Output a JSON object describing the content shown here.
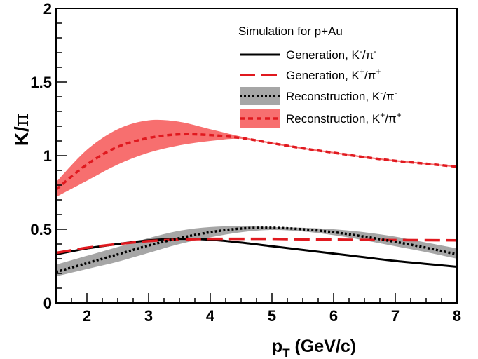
{
  "chart_data": {
    "type": "line",
    "title": "",
    "xlabel": {
      "main": "p",
      "sub": "T",
      "rest": " (GeV/c)"
    },
    "ylabel": {
      "main": "K/",
      "greek": "π"
    },
    "xlim": [
      1.5,
      8
    ],
    "ylim": [
      0,
      2
    ],
    "x_ticks": [
      2,
      3,
      4,
      5,
      6,
      7,
      8
    ],
    "y_ticks": [
      {
        "value": 0,
        "label": "0"
      },
      {
        "value": 0.5,
        "label": "0.5"
      },
      {
        "value": 1,
        "label": "1"
      },
      {
        "value": 1.5,
        "label": "1.5"
      },
      {
        "value": 2,
        "label": "2"
      }
    ],
    "grid": false,
    "legend_position": "top-right",
    "legend_header": "Simulation for p+Au",
    "series": [
      {
        "name": "Generation, K⁻/π⁻",
        "label": {
          "pre": "Generation, K",
          "sup1": "-",
          "mid": "/π",
          "sup2": "-"
        },
        "style": "solid",
        "color": "#000000",
        "x": [
          1.5,
          2,
          2.5,
          3,
          3.5,
          4,
          4.5,
          5,
          5.5,
          6,
          6.5,
          7,
          7.5,
          8
        ],
        "y": [
          0.33,
          0.37,
          0.4,
          0.425,
          0.435,
          0.43,
          0.41,
          0.385,
          0.36,
          0.335,
          0.31,
          0.285,
          0.265,
          0.245
        ]
      },
      {
        "name": "Generation, K⁺/π⁺",
        "label": {
          "pre": "Generation, K",
          "sup1": "+",
          "mid": "/π",
          "sup2": "+"
        },
        "style": "long-dash",
        "color": "#e0191f",
        "x": [
          1.5,
          2,
          2.5,
          3,
          3.5,
          4,
          4.5,
          5,
          5.5,
          6,
          6.5,
          7,
          7.5,
          8
        ],
        "y": [
          0.34,
          0.375,
          0.4,
          0.42,
          0.43,
          0.435,
          0.435,
          0.435,
          0.432,
          0.43,
          0.428,
          0.427,
          0.426,
          0.425
        ]
      },
      {
        "name": "Reconstruction, K⁻/π⁻",
        "label": {
          "pre": "Reconstruction, K",
          "sup1": "-",
          "mid": "/π",
          "sup2": "-"
        },
        "style": "dotted",
        "color": "#000000",
        "band_color": "#a6a6a6",
        "x": [
          1.5,
          2,
          2.5,
          3,
          3.5,
          4,
          4.5,
          5,
          5.5,
          6,
          6.5,
          7,
          7.5,
          8
        ],
        "y": [
          0.21,
          0.27,
          0.33,
          0.39,
          0.44,
          0.48,
          0.505,
          0.51,
          0.5,
          0.48,
          0.45,
          0.415,
          0.375,
          0.33
        ],
        "band_low": [
          0.18,
          0.23,
          0.28,
          0.34,
          0.4,
          0.445,
          0.48,
          0.495,
          0.485,
          0.46,
          0.425,
          0.385,
          0.345,
          0.3
        ],
        "band_high": [
          0.26,
          0.32,
          0.38,
          0.44,
          0.49,
          0.515,
          0.52,
          0.515,
          0.51,
          0.5,
          0.48,
          0.45,
          0.41,
          0.37
        ]
      },
      {
        "name": "Reconstruction, K⁺/π⁺",
        "label": {
          "pre": "Reconstruction, K",
          "sup1": "+",
          "mid": "/π",
          "sup2": "+"
        },
        "style": "short-dash",
        "color": "#e0191f",
        "band_color": "#f76f6f",
        "x": [
          1.5,
          2,
          2.5,
          3,
          3.5,
          4,
          4.5,
          5,
          5.5,
          6,
          6.5,
          7,
          7.5,
          8
        ],
        "y": [
          0.77,
          0.94,
          1.06,
          1.12,
          1.145,
          1.14,
          1.12,
          1.085,
          1.05,
          1.02,
          0.99,
          0.965,
          0.945,
          0.925
        ],
        "band_low": [
          0.72,
          0.83,
          0.94,
          1.02,
          1.07,
          1.1,
          1.115,
          1.08,
          1.045,
          1.015,
          0.985,
          0.96,
          0.94,
          0.92
        ],
        "band_high": [
          0.82,
          1.04,
          1.18,
          1.24,
          1.23,
          1.18,
          1.13,
          1.09,
          1.055,
          1.025,
          0.995,
          0.97,
          0.95,
          0.93
        ]
      }
    ]
  }
}
